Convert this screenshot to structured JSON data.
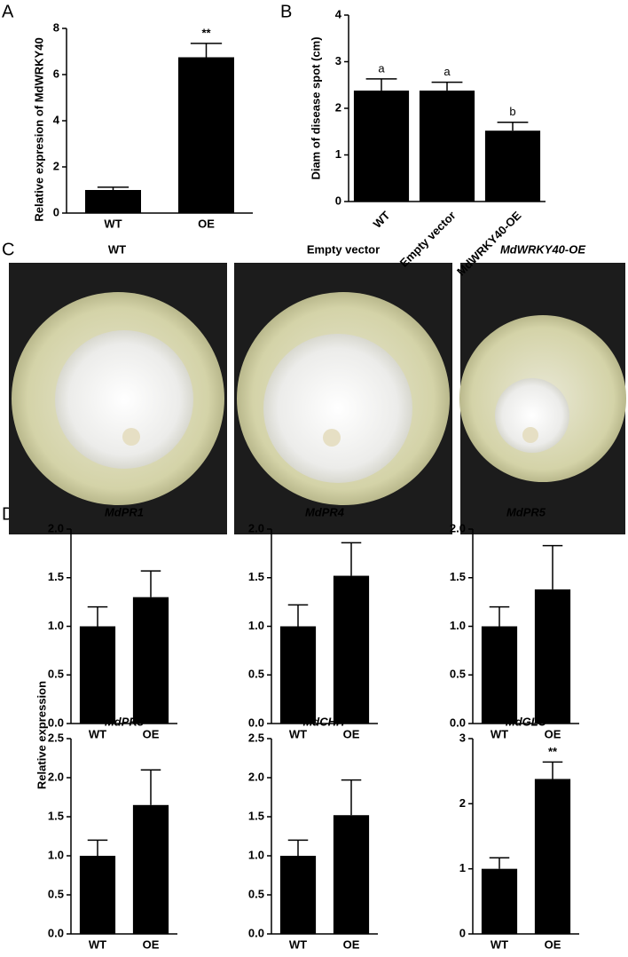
{
  "panel_labels": [
    "A",
    "B",
    "C",
    "D"
  ],
  "photo_titles": [
    "WT",
    "Empty vector",
    "MdWRKY40-OE"
  ],
  "shared_ylabel": "Relative expression",
  "chart_data": [
    {
      "type": "bar",
      "ylabel": "Relative expresion of MdWRKY40",
      "categories": [
        "WT",
        "OE"
      ],
      "values": [
        1.0,
        6.75
      ],
      "errors": [
        0.12,
        0.6
      ],
      "annotations": [
        null,
        "**"
      ],
      "color": "#000000",
      "ylim": [
        0,
        8
      ],
      "yticks": [
        0,
        2,
        4,
        6,
        8
      ]
    },
    {
      "type": "bar",
      "ylabel": "Diam of disease spot (cm)",
      "categories": [
        "WT",
        "Empty vector",
        "MdWRKY40-OE"
      ],
      "values": [
        2.38,
        2.38,
        1.52
      ],
      "errors": [
        0.25,
        0.18,
        0.18
      ],
      "annotations": [
        "a",
        "a",
        "b"
      ],
      "color": "#000000",
      "ylim": [
        0,
        4
      ],
      "yticks": [
        0,
        1,
        2,
        3,
        4
      ]
    },
    {
      "type": "bar",
      "title": "MdPR1",
      "categories": [
        "WT",
        "OE"
      ],
      "values": [
        1.0,
        1.3
      ],
      "errors": [
        0.2,
        0.27
      ],
      "color": "#000000",
      "ylim": [
        0,
        2
      ],
      "yticks": [
        {
          "value": 0,
          "label": "0.0"
        },
        0.5,
        {
          "value": 1,
          "label": "1.0"
        },
        1.5,
        {
          "value": 2,
          "label": "2.0"
        }
      ]
    },
    {
      "type": "bar",
      "title": "MdPR4",
      "categories": [
        "WT",
        "OE"
      ],
      "values": [
        1.0,
        1.52
      ],
      "errors": [
        0.22,
        0.34
      ],
      "color": "#000000",
      "ylim": [
        0,
        2
      ],
      "yticks": [
        {
          "value": 0,
          "label": "0.0"
        },
        0.5,
        {
          "value": 1,
          "label": "1.0"
        },
        1.5,
        {
          "value": 2,
          "label": "2.0"
        }
      ]
    },
    {
      "type": "bar",
      "title": "MdPR5",
      "categories": [
        "WT",
        "OE"
      ],
      "values": [
        1.0,
        1.38
      ],
      "errors": [
        0.2,
        0.45
      ],
      "color": "#000000",
      "ylim": [
        0,
        2
      ],
      "yticks": [
        {
          "value": 0,
          "label": "0.0"
        },
        0.5,
        {
          "value": 1,
          "label": "1.0"
        },
        1.5,
        {
          "value": 2,
          "label": "2.0"
        }
      ]
    },
    {
      "type": "bar",
      "title": "MdPR8",
      "categories": [
        "WT",
        "OE"
      ],
      "values": [
        1.0,
        1.65
      ],
      "errors": [
        0.2,
        0.45
      ],
      "color": "#000000",
      "ylim": [
        0,
        2.5
      ],
      "yticks": [
        {
          "value": 0,
          "label": "0.0"
        },
        0.5,
        {
          "value": 1,
          "label": "1.0"
        },
        1.5,
        {
          "value": 2,
          "label": "2.0"
        },
        2.5
      ]
    },
    {
      "type": "bar",
      "title": "MdCHIT",
      "categories": [
        "WT",
        "OE"
      ],
      "values": [
        1.0,
        1.52
      ],
      "errors": [
        0.2,
        0.45
      ],
      "color": "#000000",
      "ylim": [
        0,
        2.5
      ],
      "yticks": [
        {
          "value": 0,
          "label": "0.0"
        },
        0.5,
        {
          "value": 1,
          "label": "1.0"
        },
        1.5,
        {
          "value": 2,
          "label": "2.0"
        },
        2.5
      ]
    },
    {
      "type": "bar",
      "title": "MdGLU",
      "categories": [
        "WT",
        "OE"
      ],
      "values": [
        1.0,
        2.38
      ],
      "errors": [
        0.17,
        0.26
      ],
      "annotations": [
        null,
        "**"
      ],
      "color": "#000000",
      "ylim": [
        0,
        3
      ],
      "yticks": [
        0,
        1,
        2,
        3
      ]
    }
  ]
}
